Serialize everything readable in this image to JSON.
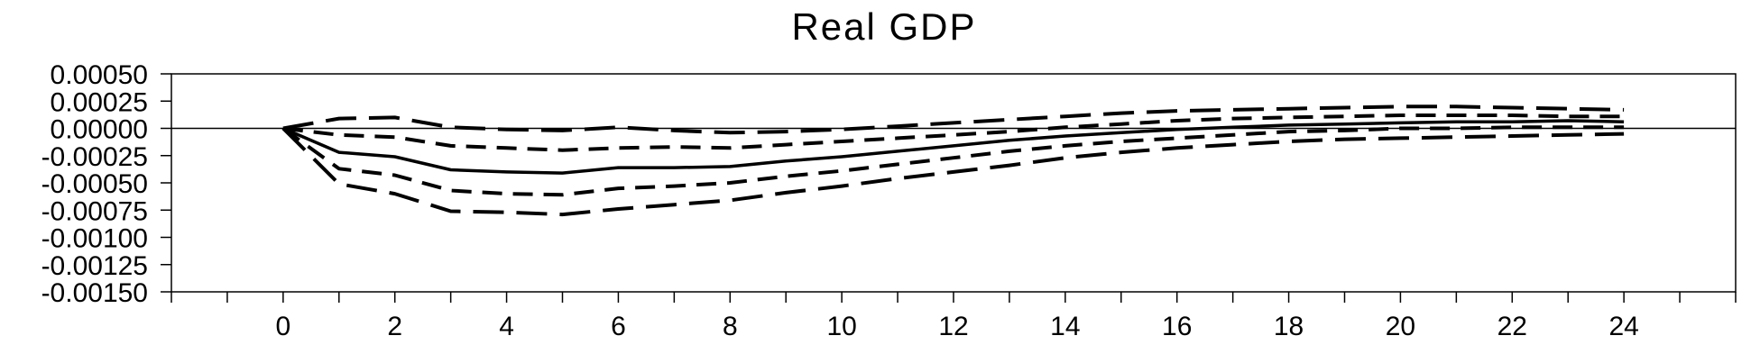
{
  "chart_data": {
    "type": "line",
    "title": "Real GDP",
    "xlabel": "",
    "ylabel": "",
    "xlim": [
      -2,
      26
    ],
    "ylim": [
      -0.0015,
      0.0005
    ],
    "x": [
      0,
      1,
      2,
      3,
      4,
      5,
      6,
      7,
      8,
      9,
      10,
      11,
      12,
      13,
      14,
      15,
      16,
      17,
      18,
      19,
      20,
      21,
      22,
      23,
      24
    ],
    "x_tick_labels": [
      "0",
      "2",
      "4",
      "6",
      "8",
      "10",
      "12",
      "14",
      "16",
      "18",
      "20",
      "22",
      "24"
    ],
    "y_tick_labels": [
      "0.00050",
      "0.00025",
      "0.00000",
      "-0.00025",
      "-0.00050",
      "-0.00075",
      "-0.00100",
      "-0.00125",
      "-0.00150"
    ],
    "y_tick_values": [
      0.0005,
      0.00025,
      0,
      -0.00025,
      -0.0005,
      -0.00075,
      -0.001,
      -0.00125,
      -0.0015
    ],
    "grid": false,
    "series": [
      {
        "style": "solid",
        "values": [
          0,
          -0.00022,
          -0.00026,
          -0.00038,
          -0.0004,
          -0.00041,
          -0.00036,
          -0.00036,
          -0.00035,
          -0.0003,
          -0.00026,
          -0.00021,
          -0.00016,
          -0.00011,
          -7e-05,
          -4e-05,
          -1e-05,
          1e-05,
          3e-05,
          4e-05,
          5e-05,
          6e-05,
          6e-05,
          7e-05,
          6e-05
        ]
      },
      {
        "style": "long-dash",
        "values": [
          0,
          9e-05,
          0.0001,
          1e-05,
          -1e-05,
          -2e-05,
          1e-05,
          -2e-05,
          -4e-05,
          -3e-05,
          -1e-05,
          2e-05,
          5e-05,
          8e-05,
          0.00011,
          0.00014,
          0.00016,
          0.00017,
          0.00018,
          0.00019,
          0.0002,
          0.0002,
          0.00019,
          0.00018,
          0.00017
        ]
      },
      {
        "style": "long-dash",
        "values": [
          0,
          -0.00051,
          -0.0006,
          -0.00076,
          -0.00077,
          -0.00079,
          -0.00074,
          -0.0007,
          -0.00066,
          -0.00059,
          -0.00053,
          -0.00046,
          -0.0004,
          -0.00034,
          -0.00027,
          -0.00022,
          -0.00018,
          -0.00015,
          -0.00012,
          -0.0001,
          -9e-05,
          -8e-05,
          -7e-05,
          -6e-05,
          -5e-05
        ]
      },
      {
        "style": "dash",
        "values": [
          0,
          -6e-05,
          -8e-05,
          -0.00016,
          -0.00018,
          -0.0002,
          -0.00018,
          -0.00017,
          -0.00018,
          -0.00015,
          -0.00012,
          -9e-05,
          -6e-05,
          -3e-05,
          1e-05,
          4e-05,
          7e-05,
          9e-05,
          0.0001,
          0.00011,
          0.00012,
          0.00012,
          0.00012,
          0.00011,
          0.00011
        ]
      },
      {
        "style": "dash",
        "values": [
          0,
          -0.00037,
          -0.00043,
          -0.00057,
          -0.0006,
          -0.00061,
          -0.00055,
          -0.00053,
          -0.0005,
          -0.00044,
          -0.00039,
          -0.00033,
          -0.00027,
          -0.00021,
          -0.00016,
          -0.00012,
          -9e-05,
          -6e-05,
          -3e-05,
          -2e-05,
          0.0,
          0.0,
          1e-05,
          1e-05,
          1e-05
        ]
      }
    ]
  }
}
